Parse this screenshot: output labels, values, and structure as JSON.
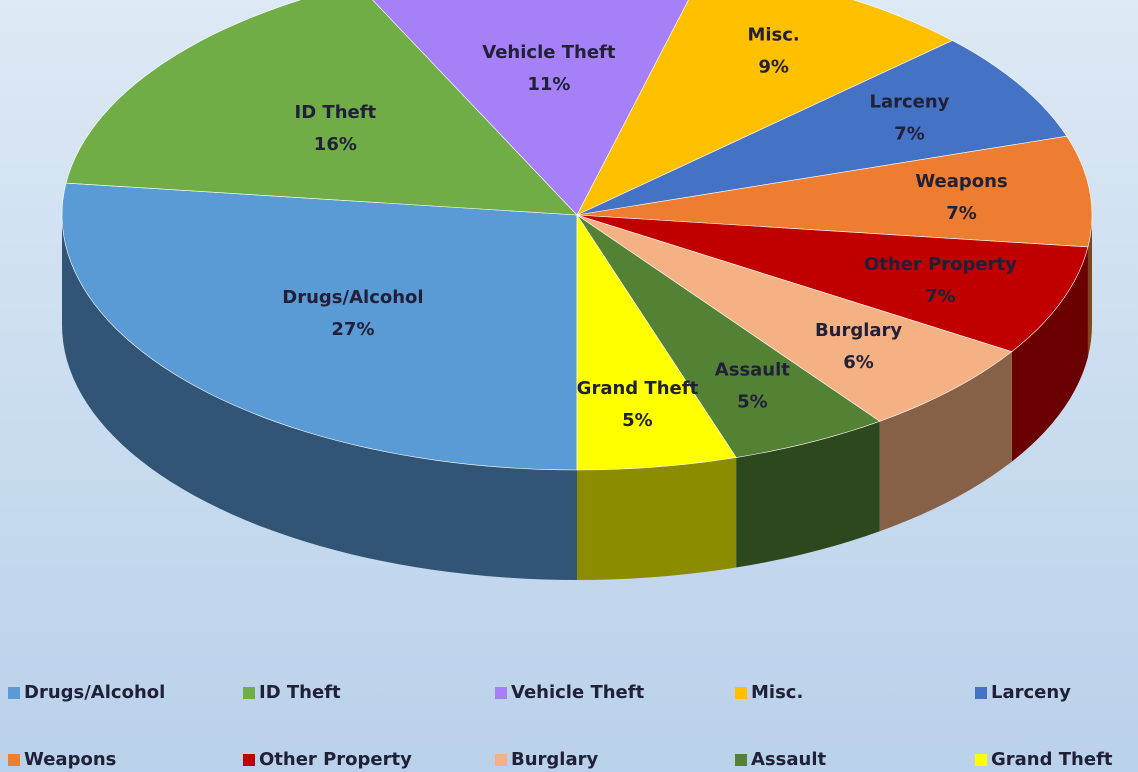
{
  "chart_data": {
    "type": "pie3d",
    "categories": [
      "Drugs/Alcohol",
      "ID Theft",
      "Vehicle Theft",
      "Misc.",
      "Larceny",
      "Weapons",
      "Other Property",
      "Burglary",
      "Assault",
      "Grand Theft"
    ],
    "values": [
      27,
      16,
      11,
      9,
      7,
      7,
      7,
      6,
      5,
      5
    ],
    "value_labels": [
      "27%",
      "16%",
      "11%",
      "9%",
      "7%",
      "7%",
      "7%",
      "6%",
      "5%",
      "5%"
    ],
    "colors": [
      "#5b9bd5",
      "#70ad47",
      "#a680f7",
      "#ffc000",
      "#4472c4",
      "#ed7d31",
      "#c00000",
      "#f4b183",
      "#548235",
      "#ffff00"
    ],
    "legend": "bottom"
  }
}
